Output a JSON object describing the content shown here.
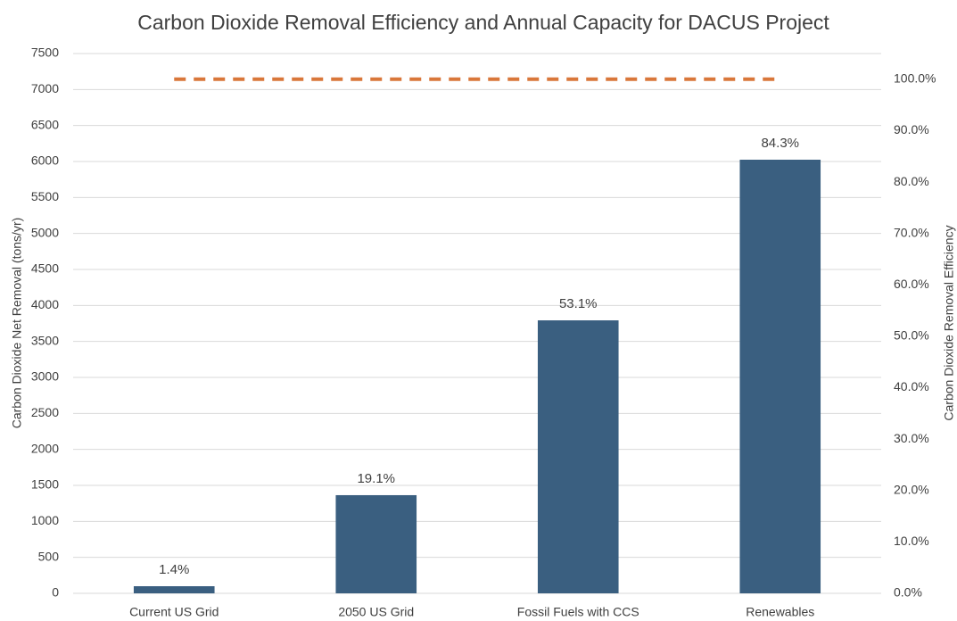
{
  "chart_data": {
    "type": "bar",
    "title": "Carbon Dioxide Removal Efficiency and Annual Capacity for DACUS Project",
    "y_label": "Carbon Dioxide Net Removal (tons/yr)",
    "y2_label": "Carbon Dioxide Removal Efficiency",
    "categories": [
      "Current US Grid",
      "2050 US Grid",
      "Fossil Fuels with CCS",
      "Renewables"
    ],
    "series": [
      {
        "color": "#3a5f80",
        "values": [
          99,
          1364,
          3793,
          6025
        ]
      },
      {
        "axis": "y2",
        "role": "labels",
        "values": [
          1.4,
          19.1,
          53.1,
          84.3
        ],
        "value_labels": [
          "1.4%",
          "19.1%",
          "53.1%",
          "84.3%"
        ]
      },
      {
        "axis": "y2",
        "type": "line",
        "dashed": true,
        "color": "#d9773a",
        "values": [
          100,
          100,
          100,
          100
        ]
      }
    ],
    "ylim": [
      0,
      7500
    ],
    "yticks": [
      0,
      500,
      1000,
      1500,
      2000,
      2500,
      3000,
      3500,
      4000,
      4500,
      5000,
      5500,
      6000,
      6500,
      7000,
      7500
    ],
    "y2lim": [
      0,
      105
    ],
    "y2ticks": [
      {
        "value": 0,
        "label": "0.0%"
      },
      {
        "value": 10,
        "label": "10.0%"
      },
      {
        "value": 20,
        "label": "20.0%"
      },
      {
        "value": 30,
        "label": "30.0%"
      },
      {
        "value": 40,
        "label": "40.0%"
      },
      {
        "value": 50,
        "label": "50.0%"
      },
      {
        "value": 60,
        "label": "60.0%"
      },
      {
        "value": 70,
        "label": "70.0%"
      },
      {
        "value": 80,
        "label": "80.0%"
      },
      {
        "value": 90,
        "label": "90.0%"
      },
      {
        "value": 100,
        "label": "100.0%"
      }
    ],
    "grid": true
  }
}
